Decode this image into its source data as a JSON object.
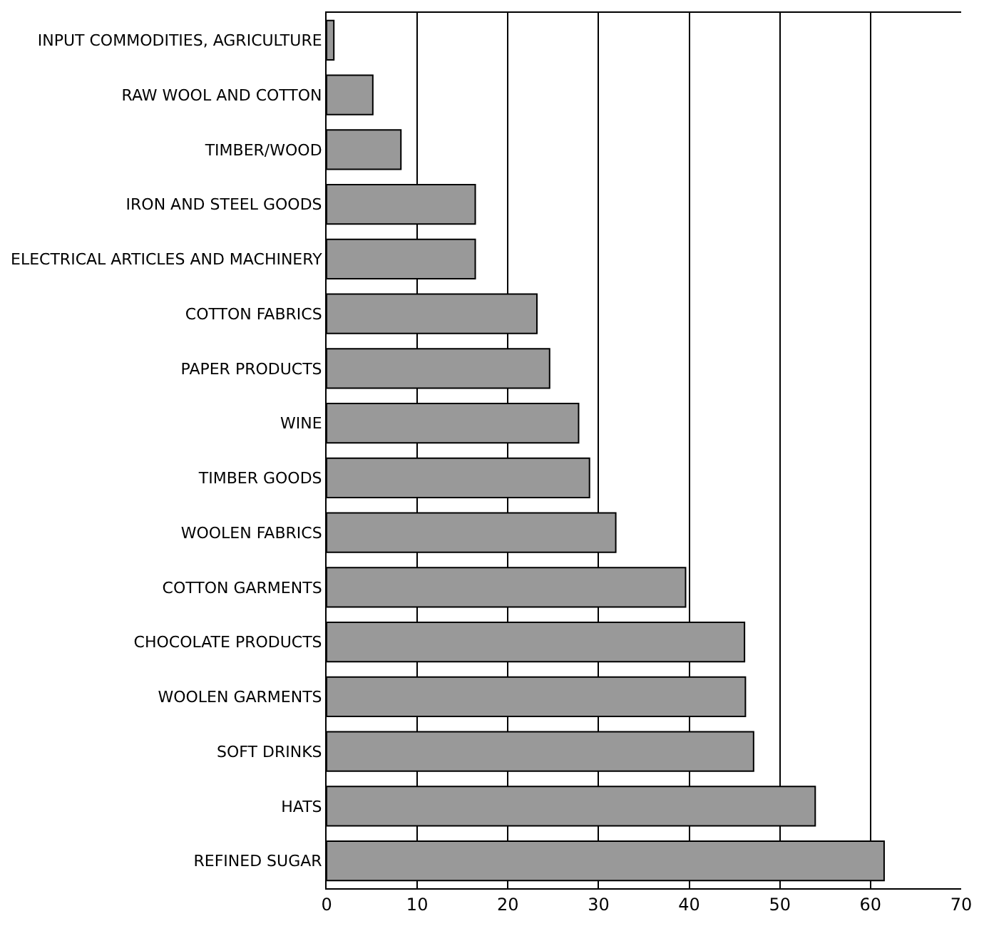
{
  "chart_data": {
    "type": "bar",
    "orientation": "horizontal",
    "categories": [
      "INPUT COMMODITIES, AGRICULTURE",
      "RAW WOOL AND COTTON",
      "TIMBER/WOOD",
      "IRON AND STEEL GOODS",
      "ELECTRICAL ARTICLES AND MACHINERY",
      "COTTON FABRICS",
      "PAPER PRODUCTS",
      "WINE",
      "TIMBER GOODS",
      "WOOLEN FABRICS",
      "COTTON GARMENTS",
      "CHOCOLATE PRODUCTS",
      "WOOLEN GARMENTS",
      "SOFT DRINKS",
      "HATS",
      "REFINED SUGAR"
    ],
    "values": [
      0.8,
      5.1,
      8.2,
      16.4,
      16.4,
      23.2,
      24.6,
      27.8,
      29.0,
      31.9,
      39.6,
      46.1,
      46.2,
      47.1,
      53.9,
      61.5
    ],
    "color": "#999999",
    "xlim": [
      0,
      70
    ],
    "xticks": [
      0,
      10,
      20,
      30,
      40,
      50,
      60,
      70
    ],
    "grid": "x",
    "legend": false
  }
}
